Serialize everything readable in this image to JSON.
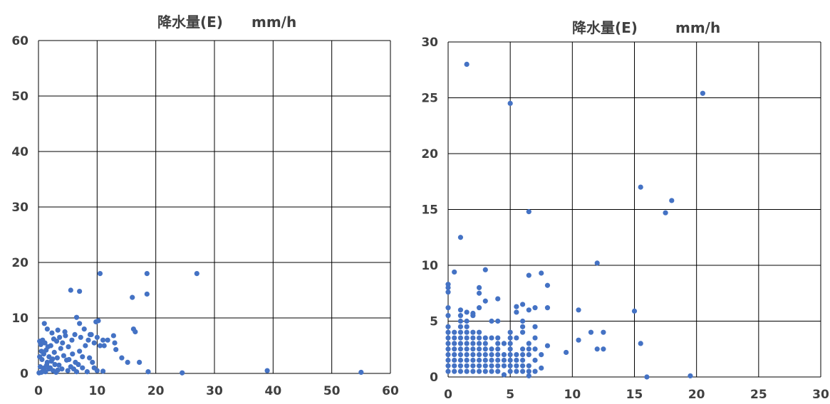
{
  "chart_data": [
    {
      "type": "scatter",
      "title": "降水量(E)",
      "title_unit": "mm/h",
      "xlim": [
        0,
        60
      ],
      "ylim": [
        0,
        60
      ],
      "xticks": [
        0,
        10,
        20,
        30,
        40,
        50,
        60
      ],
      "yticks": [
        0,
        10,
        20,
        30,
        40,
        50,
        60
      ],
      "grid": true,
      "point_color": "#4472C4",
      "series": [
        {
          "points": [
            [
              0.5,
              0.2
            ],
            [
              0.8,
              0.5
            ],
            [
              1,
              1
            ],
            [
              1.2,
              0.3
            ],
            [
              1.5,
              2
            ],
            [
              2,
              1
            ],
            [
              2.5,
              0.5
            ],
            [
              3,
              0.2
            ],
            [
              3.5,
              1.5
            ],
            [
              4,
              0.8
            ],
            [
              0.3,
              1.2
            ],
            [
              0.6,
              2.5
            ],
            [
              0.9,
              3.5
            ],
            [
              1.3,
              4.2
            ],
            [
              1.8,
              3
            ],
            [
              2.2,
              2.2
            ],
            [
              2.7,
              3.8
            ],
            [
              3.2,
              2.8
            ],
            [
              3.8,
              4.5
            ],
            [
              4.3,
              3.2
            ],
            [
              0.4,
              5.2
            ],
            [
              0.7,
              6
            ],
            [
              1.1,
              5.5
            ],
            [
              1.6,
              4.8
            ],
            [
              2.1,
              5
            ],
            [
              2.6,
              6.2
            ],
            [
              3.1,
              5.8
            ],
            [
              3.6,
              6.5
            ],
            [
              4.1,
              5.5
            ],
            [
              4.6,
              6.8
            ],
            [
              5,
              0.5
            ],
            [
              5.5,
              1.2
            ],
            [
              6,
              0.8
            ],
            [
              6.5,
              0.3
            ],
            [
              5.2,
              2.5
            ],
            [
              5.8,
              3.5
            ],
            [
              6.3,
              2
            ],
            [
              7,
              4
            ],
            [
              7.5,
              3
            ],
            [
              8,
              5
            ],
            [
              5.1,
              4.8
            ],
            [
              5.7,
              6
            ],
            [
              6.2,
              7
            ],
            [
              7.2,
              6.5
            ],
            [
              8.5,
              6
            ],
            [
              9,
              7
            ],
            [
              9.5,
              5.5
            ],
            [
              10,
              6.5
            ],
            [
              10.5,
              5
            ],
            [
              11,
              6
            ],
            [
              1,
              9
            ],
            [
              1.5,
              8
            ],
            [
              2.3,
              7.3
            ],
            [
              3.3,
              7.8
            ],
            [
              4.5,
              7.5
            ],
            [
              6.5,
              10.1
            ],
            [
              7,
              9
            ],
            [
              7.8,
              8
            ],
            [
              8.8,
              7
            ],
            [
              9.8,
              9.3
            ],
            [
              10.2,
              9.5
            ],
            [
              11.2,
              5
            ],
            [
              11.8,
              6
            ],
            [
              12.8,
              6.8
            ],
            [
              13,
              5.5
            ],
            [
              13.2,
              4.3
            ],
            [
              14.2,
              2.8
            ],
            [
              15.2,
              2
            ],
            [
              16.2,
              8
            ],
            [
              16.5,
              7.5
            ],
            [
              17.2,
              2
            ],
            [
              9.2,
              2
            ],
            [
              9.5,
              1
            ],
            [
              10,
              0.5
            ],
            [
              11,
              0.4
            ],
            [
              7.5,
              1
            ],
            [
              8.3,
              0.3
            ],
            [
              5.5,
              15
            ],
            [
              7,
              14.8
            ],
            [
              10.5,
              18
            ],
            [
              16,
              13.7
            ],
            [
              18.5,
              18
            ],
            [
              18.5,
              14.3
            ],
            [
              18.7,
              0.3
            ],
            [
              24.5,
              0.1
            ],
            [
              27,
              18
            ],
            [
              39,
              0.5
            ],
            [
              55,
              0.2
            ],
            [
              1.8,
              0.8
            ],
            [
              2.8,
              1.6
            ],
            [
              3.3,
              0.6
            ],
            [
              0.2,
              3
            ],
            [
              0.5,
              4
            ],
            [
              1.4,
              1.5
            ],
            [
              2.4,
              2.6
            ],
            [
              4.8,
              2.4
            ],
            [
              6.8,
              1.6
            ],
            [
              8.7,
              2.8
            ],
            [
              0.1,
              0.1
            ],
            [
              0.2,
              5.8
            ]
          ]
        }
      ]
    },
    {
      "type": "scatter",
      "title": "降水量(E)",
      "title_unit": "mm/h",
      "xlim": [
        0,
        30
      ],
      "ylim": [
        0,
        30
      ],
      "xticks": [
        0,
        5,
        10,
        15,
        20,
        25,
        30
      ],
      "yticks": [
        0,
        5,
        10,
        15,
        20,
        25,
        30
      ],
      "grid": true,
      "point_color": "#4472C4",
      "series": [
        {
          "points": [
            [
              0,
              0.5
            ],
            [
              0,
              1
            ],
            [
              0,
              1.5
            ],
            [
              0,
              2
            ],
            [
              0,
              2.5
            ],
            [
              0,
              3
            ],
            [
              0,
              3.5
            ],
            [
              0,
              4
            ],
            [
              0,
              4.5
            ],
            [
              0,
              5.5
            ],
            [
              0,
              6.2
            ],
            [
              0,
              7.6
            ],
            [
              0,
              8
            ],
            [
              0,
              8.3
            ],
            [
              0.5,
              0.5
            ],
            [
              0.5,
              1
            ],
            [
              0.5,
              1.5
            ],
            [
              0.5,
              2
            ],
            [
              0.5,
              2.5
            ],
            [
              0.5,
              3
            ],
            [
              0.5,
              3.5
            ],
            [
              0.5,
              4
            ],
            [
              0.5,
              9.4
            ],
            [
              1,
              0.5
            ],
            [
              1,
              1
            ],
            [
              1,
              1.5
            ],
            [
              1,
              2
            ],
            [
              1,
              2.5
            ],
            [
              1,
              3
            ],
            [
              1,
              3.5
            ],
            [
              1,
              4
            ],
            [
              1,
              4.5
            ],
            [
              1,
              5
            ],
            [
              1,
              5.5
            ],
            [
              1,
              6
            ],
            [
              1,
              12.5
            ],
            [
              1.5,
              0.5
            ],
            [
              1.5,
              1
            ],
            [
              1.5,
              1.5
            ],
            [
              1.5,
              2
            ],
            [
              1.5,
              2.5
            ],
            [
              1.5,
              3
            ],
            [
              1.5,
              3.5
            ],
            [
              1.5,
              4
            ],
            [
              1.5,
              4.5
            ],
            [
              1.5,
              5
            ],
            [
              1.5,
              5.8
            ],
            [
              1.5,
              28
            ],
            [
              2,
              0.5
            ],
            [
              2,
              1
            ],
            [
              2,
              1.5
            ],
            [
              2,
              2
            ],
            [
              2,
              2.5
            ],
            [
              2,
              3
            ],
            [
              2,
              3.5
            ],
            [
              2,
              4
            ],
            [
              2,
              5.5
            ],
            [
              2,
              5.7
            ],
            [
              2.5,
              0.5
            ],
            [
              2.5,
              1
            ],
            [
              2.5,
              1.5
            ],
            [
              2.5,
              2
            ],
            [
              2.5,
              2.5
            ],
            [
              2.5,
              3
            ],
            [
              2.5,
              3.5
            ],
            [
              2.5,
              4
            ],
            [
              2.5,
              6.2
            ],
            [
              2.5,
              7.5
            ],
            [
              2.5,
              8
            ],
            [
              3,
              0.5
            ],
            [
              3,
              1
            ],
            [
              3,
              1.5
            ],
            [
              3,
              2
            ],
            [
              3,
              2.5
            ],
            [
              3,
              3
            ],
            [
              3,
              3.5
            ],
            [
              3,
              6.8
            ],
            [
              3,
              9.6
            ],
            [
              3.5,
              0.5
            ],
            [
              3.5,
              1
            ],
            [
              3.5,
              1.5
            ],
            [
              3.5,
              2
            ],
            [
              3.5,
              2.5
            ],
            [
              3.5,
              3.5
            ],
            [
              3.5,
              5
            ],
            [
              4,
              0.5
            ],
            [
              4,
              1
            ],
            [
              4,
              1.5
            ],
            [
              4,
              2
            ],
            [
              4,
              2.5
            ],
            [
              4,
              3
            ],
            [
              4,
              3.5
            ],
            [
              4,
              5
            ],
            [
              4,
              7
            ],
            [
              4.5,
              0.2
            ],
            [
              4.5,
              1
            ],
            [
              4.5,
              1.5
            ],
            [
              4.5,
              2
            ],
            [
              4.5,
              3
            ],
            [
              5,
              0.5
            ],
            [
              5,
              1
            ],
            [
              5,
              1.5
            ],
            [
              5,
              2
            ],
            [
              5,
              2.5
            ],
            [
              5,
              3
            ],
            [
              5,
              3.5
            ],
            [
              5,
              4
            ],
            [
              5,
              24.5
            ],
            [
              5.5,
              0.5
            ],
            [
              5.5,
              1
            ],
            [
              5.5,
              1.5
            ],
            [
              5.5,
              2
            ],
            [
              5.5,
              3.5
            ],
            [
              5.5,
              5.8
            ],
            [
              5.5,
              6.3
            ],
            [
              6,
              0.5
            ],
            [
              6,
              1
            ],
            [
              6,
              1.5
            ],
            [
              6,
              2
            ],
            [
              6,
              2.5
            ],
            [
              6,
              4
            ],
            [
              6,
              4.5
            ],
            [
              6,
              5
            ],
            [
              6,
              6.5
            ],
            [
              6.5,
              0.5
            ],
            [
              6.5,
              1
            ],
            [
              6.5,
              2
            ],
            [
              6.5,
              2.5
            ],
            [
              6.5,
              3
            ],
            [
              6.5,
              9.1
            ],
            [
              6.5,
              14.8
            ],
            [
              6.5,
              0.1
            ],
            [
              6.5,
              6
            ],
            [
              7,
              0.5
            ],
            [
              7,
              1.5
            ],
            [
              7,
              2.5
            ],
            [
              7,
              3.5
            ],
            [
              7,
              4.5
            ],
            [
              7,
              6.2
            ],
            [
              7.5,
              0.8
            ],
            [
              7.5,
              2
            ],
            [
              7.5,
              9.3
            ],
            [
              8,
              2.8
            ],
            [
              8,
              6.2
            ],
            [
              8,
              8.2
            ],
            [
              9.5,
              2.2
            ],
            [
              10.5,
              3.3
            ],
            [
              10.5,
              6
            ],
            [
              11.5,
              4
            ],
            [
              12,
              2.5
            ],
            [
              12,
              10.2
            ],
            [
              12.5,
              4
            ],
            [
              12.5,
              2.5
            ],
            [
              15,
              5.9
            ],
            [
              15.5,
              17
            ],
            [
              15.5,
              3
            ],
            [
              16,
              0
            ],
            [
              17.5,
              14.7
            ],
            [
              18,
              15.8
            ],
            [
              19.5,
              0.1
            ],
            [
              20.5,
              25.4
            ]
          ]
        }
      ]
    }
  ]
}
